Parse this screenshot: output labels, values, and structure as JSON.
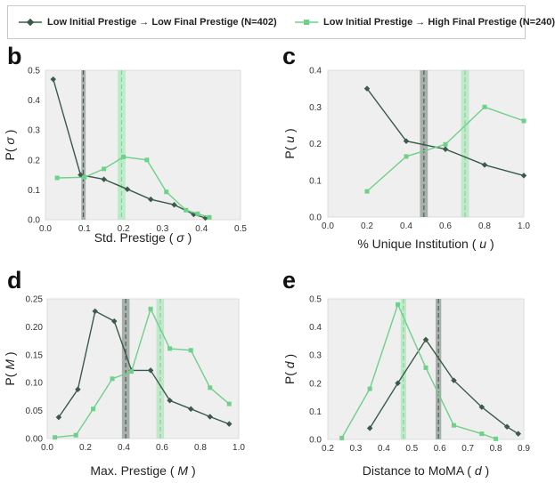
{
  "legend": {
    "dark_label": "Low Initial Prestige → Low Final Prestige (N=402)",
    "light_label": "Low Initial Prestige → High Final Prestige (N=240)"
  },
  "colors": {
    "dark": "#3b5a4b",
    "light": "#6fd08a",
    "plot_bg": "#efefef",
    "dark_band": "#9aa59f",
    "light_band": "#b8e6c4"
  },
  "chart_data": [
    {
      "type": "line",
      "panel": "b",
      "xlabel_pre": "Std. Prestige (",
      "xlabel_sym": "σ",
      "xlabel_post": ")",
      "ylabel_pre": "P(",
      "ylabel_sym": "σ",
      "ylabel_post": ")",
      "xlim": [
        0,
        0.5
      ],
      "ylim": [
        0,
        0.5
      ],
      "xticks": [
        0,
        0.1,
        0.2,
        0.3,
        0.4,
        0.5
      ],
      "xtick_labels": [
        "0.0",
        "0.1",
        "0.2",
        "0.3",
        "0.4",
        "0.5"
      ],
      "yticks": [
        0,
        0.1,
        0.2,
        0.3,
        0.4,
        0.5
      ],
      "ytick_labels": [
        "0.0",
        "0.1",
        "0.2",
        "0.3",
        "0.4",
        "0.5"
      ],
      "series": [
        {
          "style": "dark",
          "x": [
            0.02,
            0.09,
            0.15,
            0.21,
            0.27,
            0.33,
            0.38,
            0.41
          ],
          "y": [
            0.47,
            0.15,
            0.135,
            0.102,
            0.068,
            0.05,
            0.018,
            0.006
          ]
        },
        {
          "style": "light",
          "x": [
            0.03,
            0.1,
            0.15,
            0.2,
            0.26,
            0.31,
            0.36,
            0.39,
            0.42
          ],
          "y": [
            0.14,
            0.142,
            0.17,
            0.21,
            0.2,
            0.093,
            0.032,
            0.02,
            0.008
          ]
        }
      ],
      "bands": [
        {
          "style": "dark",
          "x": 0.097,
          "lo": 0.092,
          "hi": 0.103
        },
        {
          "style": "light",
          "x": 0.195,
          "lo": 0.185,
          "hi": 0.205
        }
      ]
    },
    {
      "type": "line",
      "panel": "c",
      "xlabel_pre": "% Unique Institution (",
      "xlabel_sym": "u",
      "xlabel_post": ")",
      "ylabel_pre": "P(",
      "ylabel_sym": "u",
      "ylabel_post": ")",
      "xlim": [
        0,
        1.0
      ],
      "ylim": [
        0,
        0.4
      ],
      "xticks": [
        0,
        0.2,
        0.4,
        0.6,
        0.8,
        1.0
      ],
      "xtick_labels": [
        "0.0",
        "0.2",
        "0.4",
        "0.6",
        "0.8",
        "1.0"
      ],
      "yticks": [
        0,
        0.1,
        0.2,
        0.3,
        0.4
      ],
      "ytick_labels": [
        "0.0",
        "0.1",
        "0.2",
        "0.3",
        "0.4"
      ],
      "series": [
        {
          "style": "dark",
          "x": [
            0.2,
            0.4,
            0.6,
            0.8,
            1.0
          ],
          "y": [
            0.35,
            0.207,
            0.185,
            0.142,
            0.113
          ]
        },
        {
          "style": "light",
          "x": [
            0.2,
            0.4,
            0.6,
            0.8,
            1.0
          ],
          "y": [
            0.07,
            0.165,
            0.198,
            0.3,
            0.262
          ]
        }
      ],
      "bands": [
        {
          "style": "dark",
          "x": 0.49,
          "lo": 0.47,
          "hi": 0.51
        },
        {
          "style": "light",
          "x": 0.7,
          "lo": 0.68,
          "hi": 0.72
        }
      ]
    },
    {
      "type": "line",
      "panel": "d",
      "xlabel_pre": "Max. Prestige (",
      "xlabel_sym": "M",
      "xlabel_post": ")",
      "ylabel_pre": "P(",
      "ylabel_sym": "M",
      "ylabel_post": ")",
      "xlim": [
        0,
        1.0
      ],
      "ylim": [
        0,
        0.25
      ],
      "xticks": [
        0,
        0.2,
        0.4,
        0.6,
        0.8,
        1.0
      ],
      "xtick_labels": [
        "0.0",
        "0.2",
        "0.4",
        "0.6",
        "0.8",
        "1.0"
      ],
      "yticks": [
        0,
        0.05,
        0.1,
        0.15,
        0.2,
        0.25
      ],
      "ytick_labels": [
        "0.00",
        "0.05",
        "0.10",
        "0.15",
        "0.20",
        "0.25"
      ],
      "series": [
        {
          "style": "dark",
          "x": [
            0.06,
            0.16,
            0.25,
            0.35,
            0.44,
            0.54,
            0.64,
            0.75,
            0.85,
            0.95
          ],
          "y": [
            0.038,
            0.088,
            0.228,
            0.21,
            0.122,
            0.122,
            0.068,
            0.053,
            0.039,
            0.026
          ]
        },
        {
          "style": "light",
          "x": [
            0.04,
            0.15,
            0.24,
            0.34,
            0.44,
            0.54,
            0.64,
            0.75,
            0.85,
            0.95
          ],
          "y": [
            0.002,
            0.006,
            0.053,
            0.107,
            0.12,
            0.232,
            0.161,
            0.158,
            0.091,
            0.062
          ]
        }
      ],
      "bands": [
        {
          "style": "dark",
          "x": 0.41,
          "lo": 0.39,
          "hi": 0.43
        },
        {
          "style": "light",
          "x": 0.59,
          "lo": 0.57,
          "hi": 0.61
        }
      ]
    },
    {
      "type": "line",
      "panel": "e",
      "xlabel_pre": "Distance to MoMA (",
      "xlabel_sym": "d",
      "xlabel_post": ")",
      "ylabel_pre": "P(",
      "ylabel_sym": "d",
      "ylabel_post": ")",
      "xlim": [
        0.2,
        0.9
      ],
      "ylim": [
        0,
        0.5
      ],
      "xticks": [
        0.2,
        0.3,
        0.4,
        0.5,
        0.6,
        0.7,
        0.8,
        0.9
      ],
      "xtick_labels": [
        "0.2",
        "0.3",
        "0.4",
        "0.5",
        "0.6",
        "0.7",
        "0.8",
        "0.9"
      ],
      "yticks": [
        0,
        0.1,
        0.2,
        0.3,
        0.4,
        0.5
      ],
      "ytick_labels": [
        "0.0",
        "0.1",
        "0.2",
        "0.3",
        "0.4",
        "0.5"
      ],
      "series": [
        {
          "style": "dark",
          "x": [
            0.35,
            0.45,
            0.55,
            0.65,
            0.75,
            0.84,
            0.88
          ],
          "y": [
            0.04,
            0.2,
            0.355,
            0.21,
            0.115,
            0.045,
            0.02
          ]
        },
        {
          "style": "light",
          "x": [
            0.25,
            0.35,
            0.45,
            0.55,
            0.65,
            0.75,
            0.8
          ],
          "y": [
            0.005,
            0.18,
            0.48,
            0.255,
            0.05,
            0.02,
            0.002
          ]
        }
      ],
      "bands": [
        {
          "style": "dark",
          "x": 0.595,
          "lo": 0.585,
          "hi": 0.605
        },
        {
          "style": "light",
          "x": 0.47,
          "lo": 0.46,
          "hi": 0.48
        }
      ]
    }
  ]
}
